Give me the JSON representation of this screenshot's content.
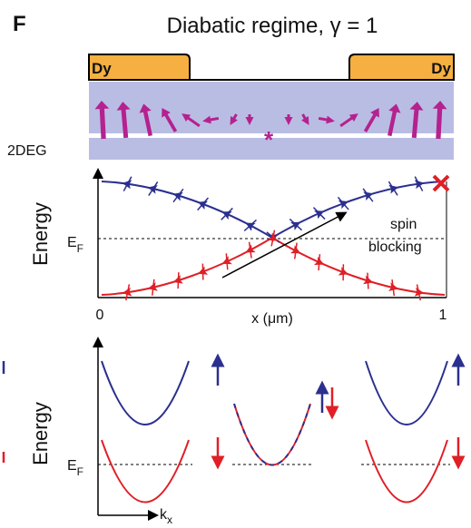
{
  "panel_label": "F",
  "title": "Diabatic regime, γ = 1",
  "electrodes": [
    "Dy",
    "Dy"
  ],
  "layer_label": "2DEG",
  "star": "*",
  "energy_plot": {
    "ylabel": "Energy",
    "fermi": {
      "main": "E",
      "sub": "F"
    },
    "annotation": [
      "spin",
      "blocking"
    ],
    "xlabel": "x (μm)",
    "xticks": [
      0,
      1
    ]
  },
  "dispersion_plot": {
    "ylabel": "Energy",
    "fermi": {
      "main": "E",
      "sub": "F"
    },
    "xlabel": {
      "main": "k",
      "sub": "x"
    }
  }
}
